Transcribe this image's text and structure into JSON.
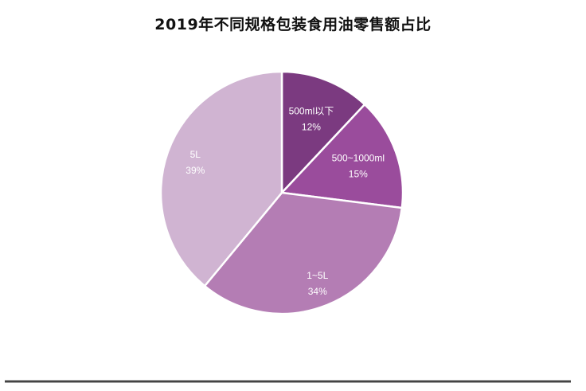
{
  "chart_data": {
    "type": "pie",
    "title": "2019年不同规格包装食用油零售额占比",
    "categories": [
      "500ml以下",
      "500~1000ml",
      "1~5L",
      "5L"
    ],
    "values": [
      12,
      15,
      34,
      39
    ],
    "value_labels": [
      "12%",
      "15%",
      "34%",
      "39%"
    ],
    "colors": [
      "#7B3A80",
      "#9A4C9C",
      "#B47DB4",
      "#D0B4D2"
    ],
    "start_angle": "top, clockwise",
    "legend": "none (labels inside slices)"
  }
}
